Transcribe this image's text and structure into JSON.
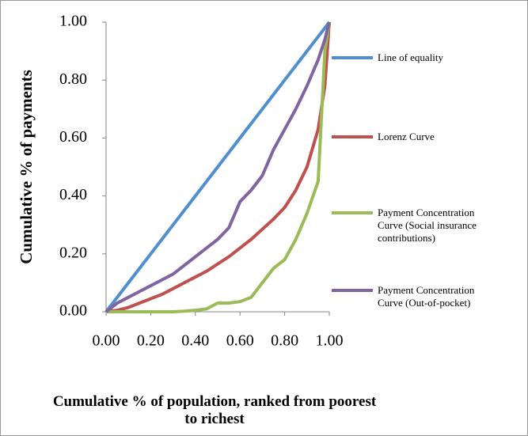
{
  "chart_data": {
    "type": "line",
    "xlabel": "Cumulative % of population, ranked from poorest to richest",
    "ylabel": "Cumulative % of payments",
    "x": [
      0,
      0.05,
      0.1,
      0.15,
      0.2,
      0.25,
      0.3,
      0.35,
      0.4,
      0.45,
      0.5,
      0.55,
      0.6,
      0.65,
      0.7,
      0.75,
      0.8,
      0.85,
      0.9,
      0.95,
      0.98,
      1.0
    ],
    "series": [
      {
        "name": "Line of equality",
        "color": "#4f8fcf",
        "values": [
          0,
          0.05,
          0.1,
          0.15,
          0.2,
          0.25,
          0.3,
          0.35,
          0.4,
          0.45,
          0.5,
          0.55,
          0.6,
          0.65,
          0.7,
          0.75,
          0.8,
          0.85,
          0.9,
          0.95,
          0.98,
          1.0
        ]
      },
      {
        "name": "Lorenz Curve",
        "color": "#c0504d",
        "values": [
          0,
          0.005,
          0.015,
          0.03,
          0.045,
          0.06,
          0.08,
          0.1,
          0.12,
          0.14,
          0.165,
          0.19,
          0.22,
          0.25,
          0.285,
          0.32,
          0.36,
          0.42,
          0.5,
          0.63,
          0.78,
          1.0
        ]
      },
      {
        "name": "Payment Concentration Curve (Social insurance contributions)",
        "color": "#9bbb59",
        "values": [
          0,
          0,
          0,
          0,
          0,
          0,
          0,
          0.002,
          0.005,
          0.01,
          0.03,
          0.03,
          0.035,
          0.05,
          0.1,
          0.15,
          0.18,
          0.25,
          0.34,
          0.45,
          0.9,
          1.0
        ]
      },
      {
        "name": "Payment Concentration Curve (Out-of-pocket)",
        "color": "#8064a2",
        "values": [
          0,
          0.03,
          0.05,
          0.07,
          0.09,
          0.11,
          0.13,
          0.16,
          0.19,
          0.22,
          0.25,
          0.29,
          0.38,
          0.42,
          0.47,
          0.56,
          0.63,
          0.7,
          0.78,
          0.87,
          0.94,
          1.0
        ]
      }
    ],
    "xlim": [
      0,
      1
    ],
    "ylim": [
      0,
      1
    ],
    "xticks": [
      {
        "value": 0,
        "label": "0.00"
      },
      {
        "value": 0.2,
        "label": "0.20"
      },
      {
        "value": 0.4,
        "label": "0.40"
      },
      {
        "value": 0.6,
        "label": "0.60"
      },
      {
        "value": 0.8,
        "label": "0.80"
      },
      {
        "value": 1,
        "label": "1.00"
      }
    ],
    "yticks": [
      {
        "value": 0,
        "label": "0.00"
      },
      {
        "value": 0.2,
        "label": "0.20"
      },
      {
        "value": 0.4,
        "label": "0.40"
      },
      {
        "value": 0.6,
        "label": "0.60"
      },
      {
        "value": 0.8,
        "label": "0.80"
      },
      {
        "value": 1,
        "label": "1.00"
      }
    ],
    "grid": false,
    "legend": "right"
  }
}
